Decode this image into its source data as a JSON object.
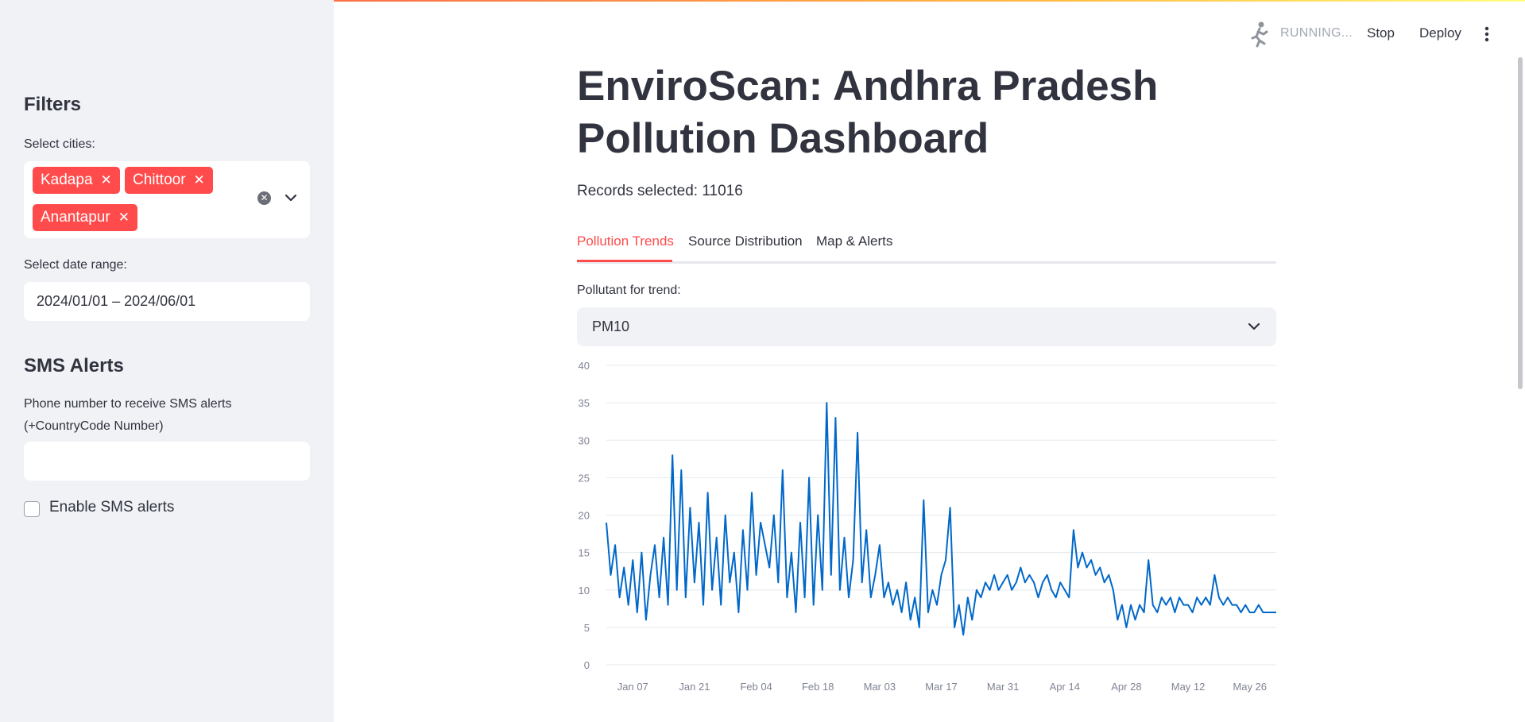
{
  "status": {
    "running": "RUNNING...",
    "stop": "Stop",
    "deploy": "Deploy"
  },
  "sidebar": {
    "filters_heading": "Filters",
    "cities_label": "Select cities:",
    "cities": [
      "Kadapa",
      "Chittoor",
      "Anantapur"
    ],
    "date_label": "Select date range:",
    "date_value": "2024/01/01 – 2024/06/01",
    "sms_heading": "SMS Alerts",
    "phone_label_line1": "Phone number to receive SMS alerts",
    "phone_label_line2": "(+CountryCode Number)",
    "phone_value": "",
    "sms_checkbox_label": "Enable SMS alerts"
  },
  "main": {
    "title": "EnviroScan: Andhra Pradesh Pollution Dashboard",
    "records_label": "Records selected: 11016",
    "tabs": [
      {
        "label": "Pollution Trends",
        "active": true
      },
      {
        "label": "Source Distribution",
        "active": false
      },
      {
        "label": "Map & Alerts",
        "active": false
      }
    ],
    "pollutant_label": "Pollutant for trend:",
    "pollutant_value": "PM10"
  },
  "colors": {
    "accent": "#ff4b4b",
    "line": "#0068c9"
  },
  "chart_data": {
    "type": "line",
    "title": "",
    "xlabel": "",
    "ylabel": "",
    "ylim": [
      0,
      40
    ],
    "yticks": [
      0,
      5,
      10,
      15,
      20,
      25,
      30,
      35,
      40
    ],
    "xticks": [
      "Jan 07",
      "Jan 21",
      "Feb 04",
      "Feb 18",
      "Mar 03",
      "Mar 17",
      "Mar 31",
      "Apr 14",
      "Apr 28",
      "May 12",
      "May 26"
    ],
    "xticks_day_offsets": [
      6,
      20,
      34,
      48,
      62,
      76,
      90,
      104,
      118,
      132,
      146
    ],
    "x_start": "2024-01-01",
    "x_end": "2024-06-01",
    "series": [
      {
        "name": "",
        "points": [
          [
            "2024-01-01",
            19
          ],
          [
            "2024-01-02",
            12
          ],
          [
            "2024-01-03",
            16
          ],
          [
            "2024-01-04",
            9
          ],
          [
            "2024-01-05",
            13
          ],
          [
            "2024-01-06",
            8
          ],
          [
            "2024-01-07",
            14
          ],
          [
            "2024-01-08",
            7
          ],
          [
            "2024-01-09",
            15
          ],
          [
            "2024-01-10",
            6
          ],
          [
            "2024-01-11",
            12
          ],
          [
            "2024-01-12",
            16
          ],
          [
            "2024-01-13",
            9
          ],
          [
            "2024-01-14",
            17
          ],
          [
            "2024-01-15",
            8
          ],
          [
            "2024-01-16",
            28
          ],
          [
            "2024-01-17",
            10
          ],
          [
            "2024-01-18",
            26
          ],
          [
            "2024-01-19",
            9
          ],
          [
            "2024-01-20",
            21
          ],
          [
            "2024-01-21",
            11
          ],
          [
            "2024-01-22",
            19
          ],
          [
            "2024-01-23",
            8
          ],
          [
            "2024-01-24",
            23
          ],
          [
            "2024-01-25",
            10
          ],
          [
            "2024-01-26",
            17
          ],
          [
            "2024-01-27",
            8
          ],
          [
            "2024-01-28",
            20
          ],
          [
            "2024-01-29",
            11
          ],
          [
            "2024-01-30",
            15
          ],
          [
            "2024-01-31",
            7
          ],
          [
            "2024-02-01",
            18
          ],
          [
            "2024-02-02",
            10
          ],
          [
            "2024-02-03",
            23
          ],
          [
            "2024-02-04",
            12
          ],
          [
            "2024-02-05",
            19
          ],
          [
            "2024-02-06",
            16
          ],
          [
            "2024-02-07",
            13
          ],
          [
            "2024-02-08",
            20
          ],
          [
            "2024-02-09",
            11
          ],
          [
            "2024-02-10",
            26
          ],
          [
            "2024-02-11",
            9
          ],
          [
            "2024-02-12",
            15
          ],
          [
            "2024-02-13",
            7
          ],
          [
            "2024-02-14",
            19
          ],
          [
            "2024-02-15",
            9
          ],
          [
            "2024-02-16",
            25
          ],
          [
            "2024-02-17",
            8
          ],
          [
            "2024-02-18",
            20
          ],
          [
            "2024-02-19",
            10
          ],
          [
            "2024-02-20",
            35
          ],
          [
            "2024-02-21",
            12
          ],
          [
            "2024-02-22",
            33
          ],
          [
            "2024-02-23",
            10
          ],
          [
            "2024-02-24",
            17
          ],
          [
            "2024-02-25",
            9
          ],
          [
            "2024-02-26",
            14
          ],
          [
            "2024-02-27",
            31
          ],
          [
            "2024-02-28",
            11
          ],
          [
            "2024-02-29",
            18
          ],
          [
            "2024-03-01",
            9
          ],
          [
            "2024-03-02",
            12
          ],
          [
            "2024-03-03",
            16
          ],
          [
            "2024-03-04",
            9
          ],
          [
            "2024-03-05",
            11
          ],
          [
            "2024-03-06",
            8
          ],
          [
            "2024-03-07",
            10
          ],
          [
            "2024-03-08",
            7
          ],
          [
            "2024-03-09",
            11
          ],
          [
            "2024-03-10",
            6
          ],
          [
            "2024-03-11",
            9
          ],
          [
            "2024-03-12",
            5
          ],
          [
            "2024-03-13",
            22
          ],
          [
            "2024-03-14",
            7
          ],
          [
            "2024-03-15",
            10
          ],
          [
            "2024-03-16",
            8
          ],
          [
            "2024-03-17",
            12
          ],
          [
            "2024-03-18",
            14
          ],
          [
            "2024-03-19",
            21
          ],
          [
            "2024-03-20",
            5
          ],
          [
            "2024-03-21",
            8
          ],
          [
            "2024-03-22",
            4
          ],
          [
            "2024-03-23",
            9
          ],
          [
            "2024-03-24",
            6
          ],
          [
            "2024-03-25",
            10
          ],
          [
            "2024-03-26",
            9
          ],
          [
            "2024-03-27",
            11
          ],
          [
            "2024-03-28",
            10
          ],
          [
            "2024-03-29",
            12
          ],
          [
            "2024-03-30",
            10
          ],
          [
            "2024-03-31",
            11
          ],
          [
            "2024-04-01",
            12
          ],
          [
            "2024-04-02",
            10
          ],
          [
            "2024-04-03",
            11
          ],
          [
            "2024-04-04",
            13
          ],
          [
            "2024-04-05",
            11
          ],
          [
            "2024-04-06",
            12
          ],
          [
            "2024-04-07",
            11
          ],
          [
            "2024-04-08",
            9
          ],
          [
            "2024-04-09",
            11
          ],
          [
            "2024-04-10",
            12
          ],
          [
            "2024-04-11",
            10
          ],
          [
            "2024-04-12",
            9
          ],
          [
            "2024-04-13",
            11
          ],
          [
            "2024-04-14",
            10
          ],
          [
            "2024-04-15",
            9
          ],
          [
            "2024-04-16",
            18
          ],
          [
            "2024-04-17",
            13
          ],
          [
            "2024-04-18",
            15
          ],
          [
            "2024-04-19",
            13
          ],
          [
            "2024-04-20",
            14
          ],
          [
            "2024-04-21",
            12
          ],
          [
            "2024-04-22",
            13
          ],
          [
            "2024-04-23",
            11
          ],
          [
            "2024-04-24",
            12
          ],
          [
            "2024-04-25",
            10
          ],
          [
            "2024-04-26",
            6
          ],
          [
            "2024-04-27",
            8
          ],
          [
            "2024-04-28",
            5
          ],
          [
            "2024-04-29",
            8
          ],
          [
            "2024-04-30",
            6
          ],
          [
            "2024-05-01",
            8
          ],
          [
            "2024-05-02",
            7
          ],
          [
            "2024-05-03",
            14
          ],
          [
            "2024-05-04",
            8
          ],
          [
            "2024-05-05",
            7
          ],
          [
            "2024-05-06",
            9
          ],
          [
            "2024-05-07",
            8
          ],
          [
            "2024-05-08",
            9
          ],
          [
            "2024-05-09",
            7
          ],
          [
            "2024-05-10",
            9
          ],
          [
            "2024-05-11",
            8
          ],
          [
            "2024-05-12",
            8
          ],
          [
            "2024-05-13",
            7
          ],
          [
            "2024-05-14",
            9
          ],
          [
            "2024-05-15",
            8
          ],
          [
            "2024-05-16",
            9
          ],
          [
            "2024-05-17",
            8
          ],
          [
            "2024-05-18",
            12
          ],
          [
            "2024-05-19",
            9
          ],
          [
            "2024-05-20",
            8
          ],
          [
            "2024-05-21",
            9
          ],
          [
            "2024-05-22",
            8
          ],
          [
            "2024-05-23",
            8
          ],
          [
            "2024-05-24",
            7
          ],
          [
            "2024-05-25",
            8
          ],
          [
            "2024-05-26",
            7
          ],
          [
            "2024-05-27",
            7
          ],
          [
            "2024-05-28",
            8
          ],
          [
            "2024-05-29",
            7
          ],
          [
            "2024-05-30",
            7
          ],
          [
            "2024-05-31",
            7
          ],
          [
            "2024-06-01",
            7
          ]
        ]
      }
    ],
    "grid": true,
    "legend": "none"
  }
}
